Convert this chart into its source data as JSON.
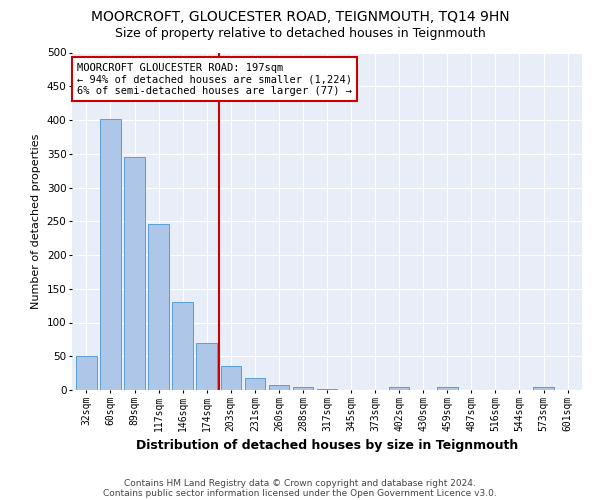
{
  "title": "MOORCROFT, GLOUCESTER ROAD, TEIGNMOUTH, TQ14 9HN",
  "subtitle": "Size of property relative to detached houses in Teignmouth",
  "xlabel": "Distribution of detached houses by size in Teignmouth",
  "ylabel": "Number of detached properties",
  "categories": [
    "32sqm",
    "60sqm",
    "89sqm",
    "117sqm",
    "146sqm",
    "174sqm",
    "203sqm",
    "231sqm",
    "260sqm",
    "288sqm",
    "317sqm",
    "345sqm",
    "373sqm",
    "402sqm",
    "430sqm",
    "459sqm",
    "487sqm",
    "516sqm",
    "544sqm",
    "573sqm",
    "601sqm"
  ],
  "values": [
    51,
    401,
    345,
    246,
    131,
    70,
    35,
    18,
    8,
    5,
    1,
    0,
    0,
    5,
    0,
    5,
    0,
    0,
    0,
    5,
    0
  ],
  "bar_color": "#aec6e8",
  "bar_edge_color": "#5a9fd4",
  "vline_index": 6,
  "vline_color": "#cc0000",
  "annotation_text": "MOORCROFT GLOUCESTER ROAD: 197sqm\n← 94% of detached houses are smaller (1,224)\n6% of semi-detached houses are larger (77) →",
  "annotation_box_facecolor": "#ffffff",
  "annotation_box_edgecolor": "#cc0000",
  "ylim": [
    0,
    500
  ],
  "yticks": [
    0,
    50,
    100,
    150,
    200,
    250,
    300,
    350,
    400,
    450,
    500
  ],
  "background_color": "#e8eef8",
  "footer_line1": "Contains HM Land Registry data © Crown copyright and database right 2024.",
  "footer_line2": "Contains public sector information licensed under the Open Government Licence v3.0.",
  "title_fontsize": 10,
  "subtitle_fontsize": 9,
  "ylabel_fontsize": 8,
  "xlabel_fontsize": 9,
  "tick_fontsize": 7,
  "annotation_fontsize": 7.5,
  "footer_fontsize": 6.5
}
